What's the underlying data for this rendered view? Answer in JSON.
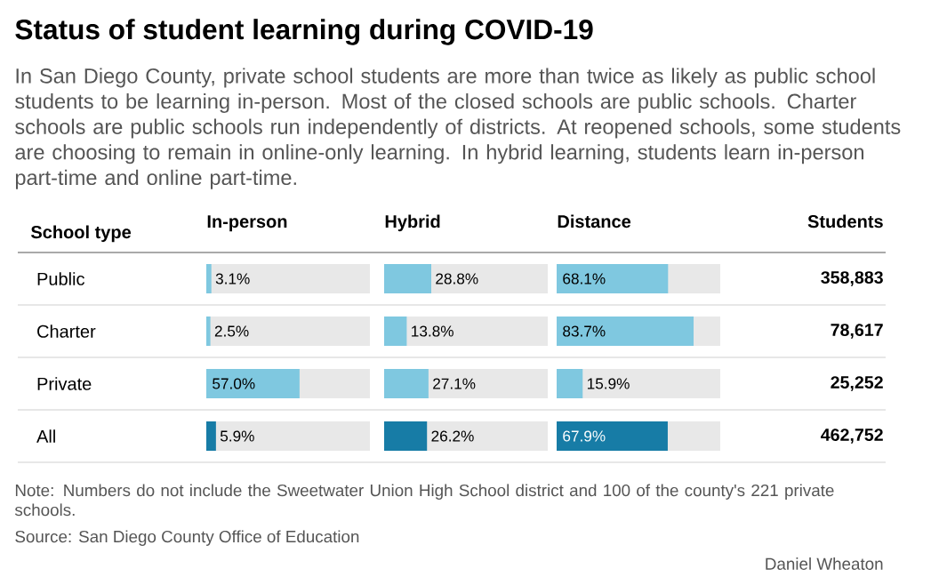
{
  "chart_data": [
    {
      "type": "other",
      "title": "Status of student learning during COVID-19",
      "subtitle": "In San Diego County, private school students are more than twice as likely as public school students to be learning in-person. Most of the closed schools are public schools. Charter schools are public schools run independently of districts. At reopened schools, some students are choosing to remain in online-only learning.    In hybrid learning, students learn in-person part-time and online part-time.",
      "annotations": [
        "Note: Numbers do not include the Sweetwater Union High School district and 100 of the county's 221 private schools.",
        "Source: San Diego County Office of Education",
        "Daniel Wheaton"
      ]
    },
    {
      "type": "bar",
      "orientation": "horizontal",
      "title": "In-person",
      "ylabel": "School type",
      "categories": [
        "Public",
        "Charter",
        "Private",
        "All"
      ],
      "values": [
        3.1,
        2.5,
        57.0,
        5.9
      ],
      "value_labels": [
        "3.1%",
        "2.5%",
        "57.0%",
        "5.9%"
      ],
      "colors": [
        "#7fc8e0",
        "#7fc8e0",
        "#7fc8e0",
        "#177ca6"
      ],
      "xlim": [
        0,
        100
      ],
      "tick_labels": "y"
    },
    {
      "type": "bar",
      "orientation": "horizontal",
      "title": "Hybrid",
      "categories": [
        null,
        null,
        null,
        null
      ],
      "values": [
        28.8,
        13.8,
        27.1,
        26.2
      ],
      "value_labels": [
        "28.8%",
        "13.8%",
        "27.1%",
        "26.2%"
      ],
      "colors": [
        "#7fc8e0",
        "#7fc8e0",
        "#7fc8e0",
        "#177ca6"
      ],
      "xlim": [
        0,
        100
      ],
      "tick_labels": false
    },
    {
      "type": "bar",
      "orientation": "horizontal",
      "title": "Distance",
      "categories": [
        null,
        null,
        null,
        null
      ],
      "values": [
        68.1,
        83.7,
        15.9,
        67.9
      ],
      "value_labels": [
        "68.1%",
        "83.7%",
        "15.9%",
        "67.9%"
      ],
      "colors": [
        "#7fc8e0",
        "#7fc8e0",
        "#7fc8e0",
        "#177ca6"
      ],
      "xlim": [
        0,
        100
      ],
      "tick_labels": false
    },
    {
      "type": "other",
      "title": "Students",
      "categories": [
        null,
        null,
        null,
        null
      ],
      "values": [
        358883,
        78617,
        25252,
        462752
      ],
      "value_labels": [
        "358,883",
        "78,617",
        "25,252",
        "462,752"
      ]
    }
  ]
}
